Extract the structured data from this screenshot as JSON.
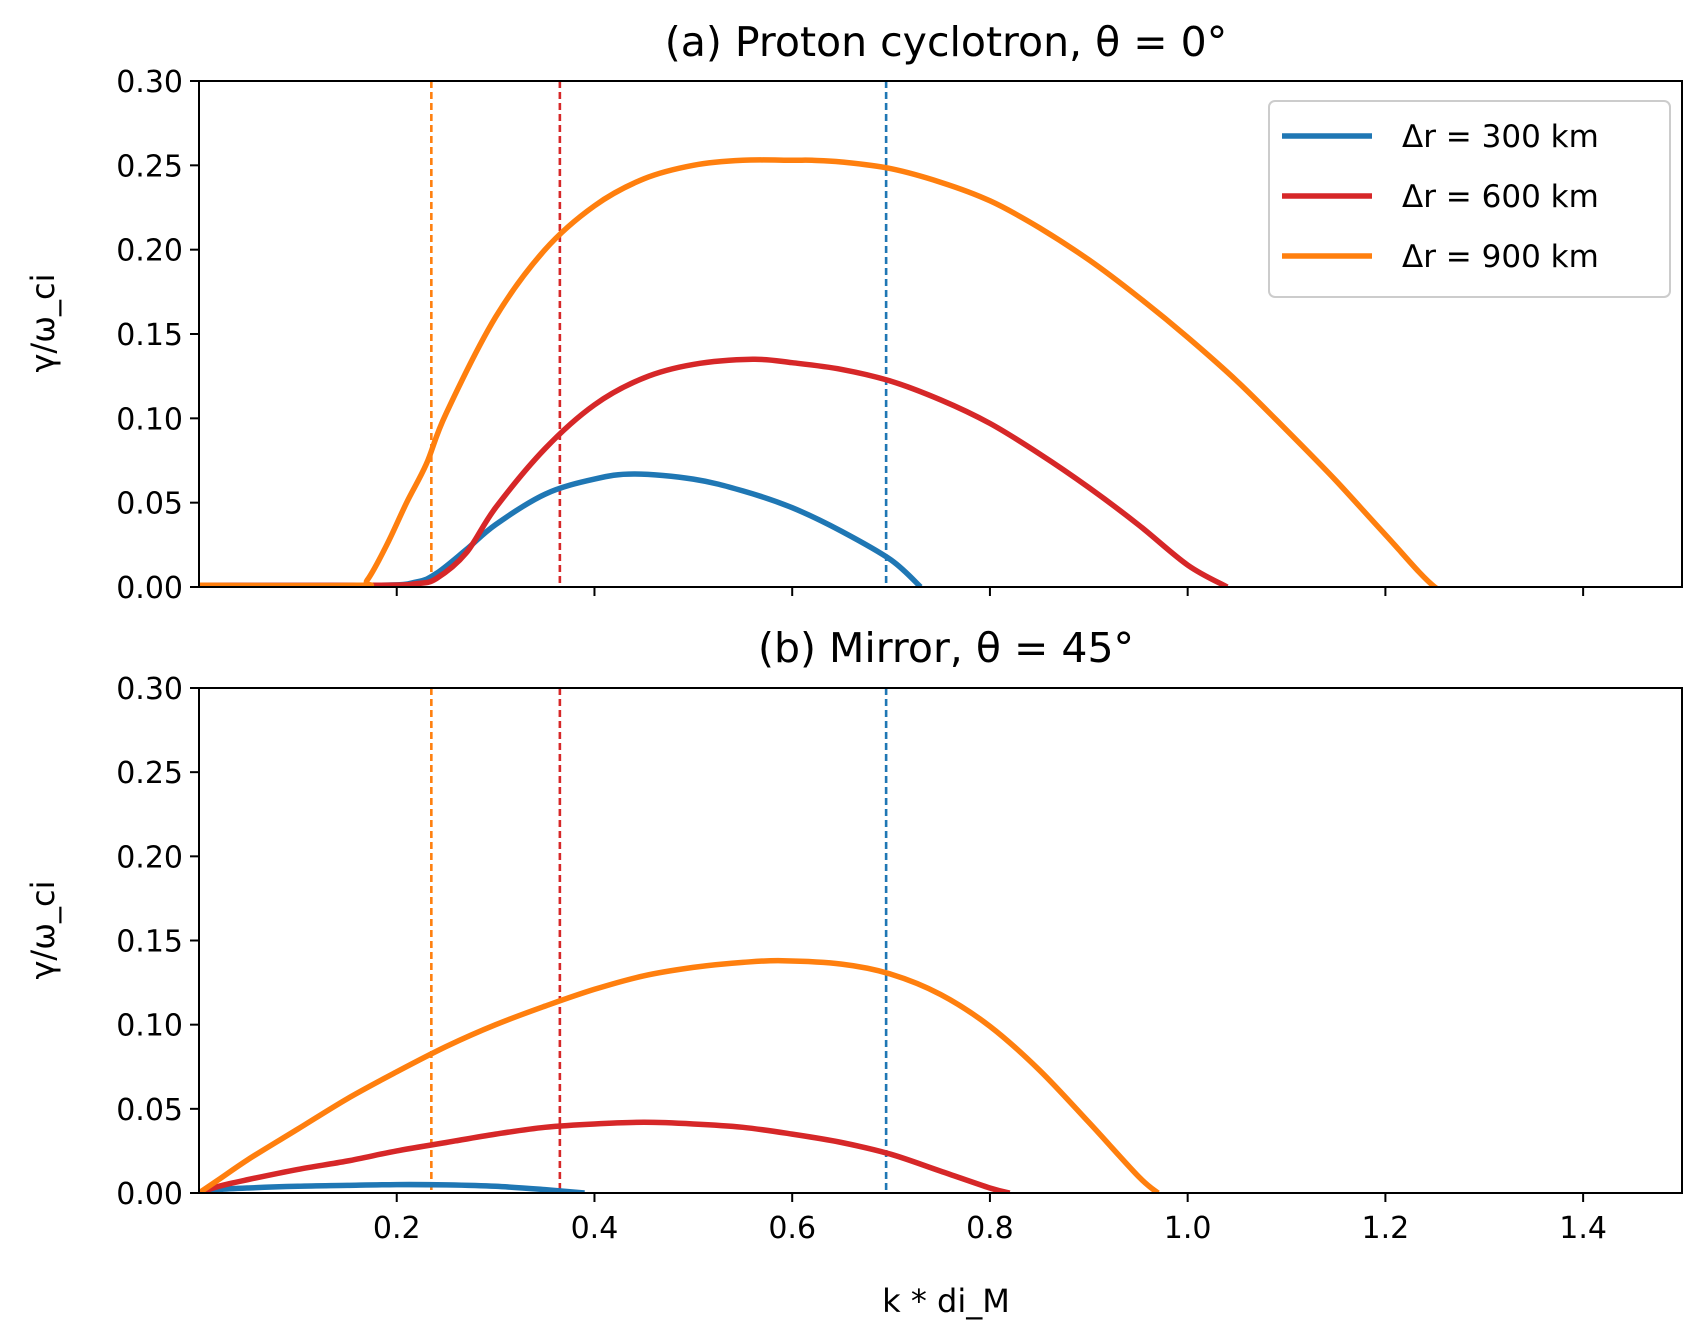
{
  "chart_data": [
    {
      "type": "line",
      "title": "(a) Proton cyclotron, θ = 0°",
      "xlabel": "",
      "ylabel": "γ/ω_ci",
      "xlim": [
        0.0,
        1.5
      ],
      "ylim": [
        0.0,
        0.3
      ],
      "xticks": [
        0.2,
        0.4,
        0.6,
        0.8,
        1.0,
        1.2,
        1.4
      ],
      "xtick_labels_shown": false,
      "yticks": [
        "0.00",
        "0.05",
        "0.10",
        "0.15",
        "0.20",
        "0.25",
        "0.30"
      ],
      "grid": false,
      "legend": {
        "placement": "top-right"
      },
      "series": [
        {
          "name": "Δr = 300 km",
          "color": "#1f77b4",
          "x": [
            0.0,
            0.18,
            0.22,
            0.24,
            0.27,
            0.3,
            0.35,
            0.4,
            0.44,
            0.5,
            0.55,
            0.6,
            0.65,
            0.7,
            0.73
          ],
          "y": [
            0.001,
            0.001,
            0.003,
            0.008,
            0.022,
            0.037,
            0.055,
            0.064,
            0.067,
            0.064,
            0.057,
            0.047,
            0.033,
            0.016,
            0.0
          ]
        },
        {
          "name": "Δr = 600 km",
          "color": "#d62728",
          "x": [
            0.0,
            0.18,
            0.22,
            0.24,
            0.27,
            0.3,
            0.35,
            0.4,
            0.45,
            0.5,
            0.56,
            0.6,
            0.65,
            0.7,
            0.75,
            0.8,
            0.85,
            0.9,
            0.95,
            1.0,
            1.04
          ],
          "y": [
            0.001,
            0.001,
            0.002,
            0.005,
            0.02,
            0.047,
            0.082,
            0.108,
            0.124,
            0.132,
            0.135,
            0.133,
            0.129,
            0.122,
            0.111,
            0.097,
            0.079,
            0.059,
            0.037,
            0.013,
            0.0
          ]
        },
        {
          "name": "Δr = 900 km",
          "color": "#ff7f0e",
          "x": [
            0.0,
            0.16,
            0.17,
            0.19,
            0.21,
            0.23,
            0.25,
            0.3,
            0.35,
            0.4,
            0.45,
            0.5,
            0.55,
            0.6,
            0.62,
            0.65,
            0.7,
            0.75,
            0.8,
            0.85,
            0.9,
            0.95,
            1.0,
            1.05,
            1.1,
            1.15,
            1.2,
            1.25,
            1.28
          ],
          "y": [
            0.001,
            0.001,
            0.004,
            0.025,
            0.05,
            0.073,
            0.103,
            0.16,
            0.2,
            0.226,
            0.242,
            0.25,
            0.253,
            0.253,
            0.253,
            0.252,
            0.248,
            0.24,
            0.229,
            0.213,
            0.194,
            0.172,
            0.148,
            0.122,
            0.093,
            0.063,
            0.031,
            0.0,
            -0.005
          ]
        }
      ],
      "vlines": [
        {
          "x": 0.235,
          "color": "#ff7f0e",
          "style": "dashed"
        },
        {
          "x": 0.365,
          "color": "#d62728",
          "style": "dashed"
        },
        {
          "x": 0.695,
          "color": "#1f77b4",
          "style": "dashed"
        }
      ]
    },
    {
      "type": "line",
      "title": "(b) Mirror, θ = 45°",
      "xlabel": "k * di_M",
      "ylabel": "γ/ω_ci",
      "xlim": [
        0.0,
        1.5
      ],
      "ylim": [
        0.0,
        0.3
      ],
      "xticks": [
        "0.2",
        "0.4",
        "0.6",
        "0.8",
        "1.0",
        "1.2",
        "1.4"
      ],
      "yticks": [
        "0.00",
        "0.05",
        "0.10",
        "0.15",
        "0.20",
        "0.25",
        "0.30"
      ],
      "grid": false,
      "series": [
        {
          "name": "Δr = 300 km",
          "color": "#1f77b4",
          "x": [
            0.0,
            0.02,
            0.05,
            0.1,
            0.15,
            0.2,
            0.25,
            0.3,
            0.35,
            0.39
          ],
          "y": [
            0.0,
            0.002,
            0.003,
            0.004,
            0.0045,
            0.005,
            0.0048,
            0.004,
            0.002,
            0.0
          ]
        },
        {
          "name": "Δr = 600 km",
          "color": "#d62728",
          "x": [
            0.0,
            0.02,
            0.05,
            0.1,
            0.15,
            0.2,
            0.25,
            0.3,
            0.35,
            0.4,
            0.45,
            0.5,
            0.55,
            0.6,
            0.65,
            0.7,
            0.75,
            0.8,
            0.82
          ],
          "y": [
            0.0,
            0.004,
            0.008,
            0.014,
            0.019,
            0.025,
            0.03,
            0.035,
            0.039,
            0.041,
            0.042,
            0.041,
            0.039,
            0.035,
            0.03,
            0.023,
            0.013,
            0.003,
            0.0
          ]
        },
        {
          "name": "Δr = 900 km",
          "color": "#ff7f0e",
          "x": [
            0.0,
            0.02,
            0.05,
            0.1,
            0.15,
            0.2,
            0.25,
            0.3,
            0.35,
            0.4,
            0.45,
            0.5,
            0.55,
            0.59,
            0.65,
            0.7,
            0.75,
            0.8,
            0.85,
            0.9,
            0.95,
            0.97
          ],
          "y": [
            0.0,
            0.008,
            0.02,
            0.038,
            0.056,
            0.072,
            0.087,
            0.1,
            0.111,
            0.121,
            0.129,
            0.134,
            0.137,
            0.138,
            0.136,
            0.13,
            0.118,
            0.099,
            0.073,
            0.042,
            0.01,
            0.0
          ]
        }
      ],
      "vlines": [
        {
          "x": 0.235,
          "color": "#ff7f0e",
          "style": "dashed"
        },
        {
          "x": 0.365,
          "color": "#d62728",
          "style": "dashed"
        },
        {
          "x": 0.695,
          "color": "#1f77b4",
          "style": "dashed"
        }
      ]
    }
  ]
}
